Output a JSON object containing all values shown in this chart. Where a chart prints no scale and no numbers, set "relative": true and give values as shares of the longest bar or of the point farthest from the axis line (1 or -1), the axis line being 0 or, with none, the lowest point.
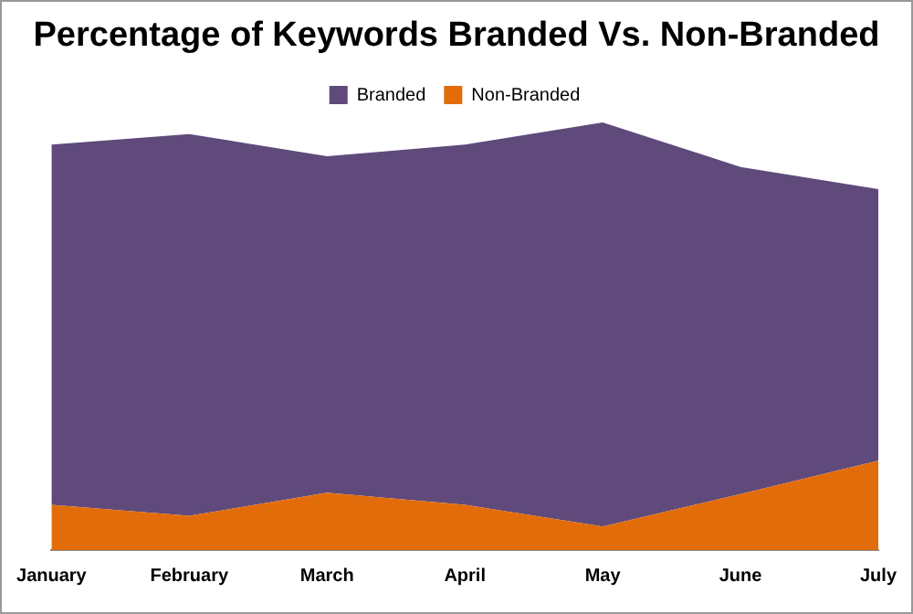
{
  "chart_data": {
    "type": "area",
    "title": "Percentage of Keywords Branded Vs. Non-Branded",
    "relative": true,
    "stacked": true,
    "legend": "top",
    "categories": [
      "January",
      "February",
      "March",
      "April",
      "May",
      "June",
      "July"
    ],
    "series": [
      {
        "name": "Non-Branded",
        "color": "#e36c0a",
        "values": [
          0.106,
          0.08,
          0.134,
          0.106,
          0.055,
          0.131,
          0.209
        ]
      },
      {
        "name": "Branded",
        "color": "#5f4a7b",
        "values": [
          0.842,
          0.893,
          0.787,
          0.842,
          0.945,
          0.765,
          0.635
        ]
      }
    ]
  }
}
